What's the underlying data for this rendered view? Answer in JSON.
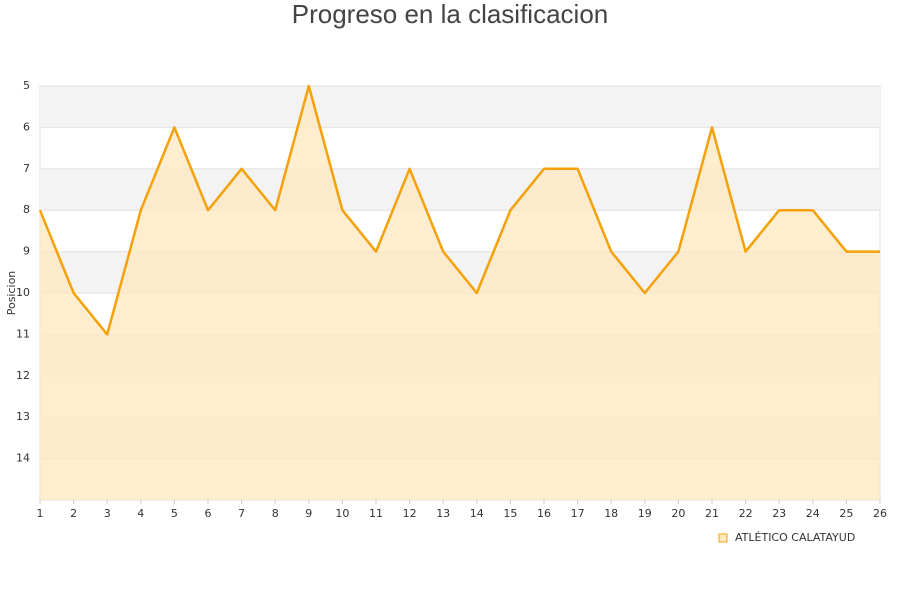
{
  "chart_data": {
    "type": "line",
    "title": "Progreso en la clasificacion",
    "y_label": "Posicion",
    "x": [
      1,
      2,
      3,
      4,
      5,
      6,
      7,
      8,
      9,
      10,
      11,
      12,
      13,
      14,
      15,
      16,
      17,
      18,
      19,
      20,
      21,
      22,
      23,
      24,
      25,
      26
    ],
    "series": [
      {
        "name": "ATLÉTICO CALATAYUD",
        "color": "#f5a10a",
        "fill": "#fde7bf",
        "values": [
          8,
          10,
          11,
          8,
          6,
          8,
          7,
          8,
          5,
          8,
          9,
          7,
          9,
          10,
          8,
          7,
          7,
          9,
          10,
          9,
          6,
          9,
          8,
          8,
          9,
          9
        ]
      }
    ],
    "xlim": [
      1,
      26
    ],
    "xticks": [
      1,
      2,
      3,
      4,
      5,
      6,
      7,
      8,
      9,
      10,
      11,
      12,
      13,
      14,
      15,
      16,
      17,
      18,
      19,
      20,
      21,
      22,
      23,
      24,
      25,
      26
    ],
    "ylim": [
      5,
      15
    ],
    "yticks": [
      5,
      6,
      7,
      8,
      9,
      10,
      11,
      12,
      13,
      14
    ],
    "y_inverted": true,
    "grid": true,
    "legend": "bottom-right"
  }
}
